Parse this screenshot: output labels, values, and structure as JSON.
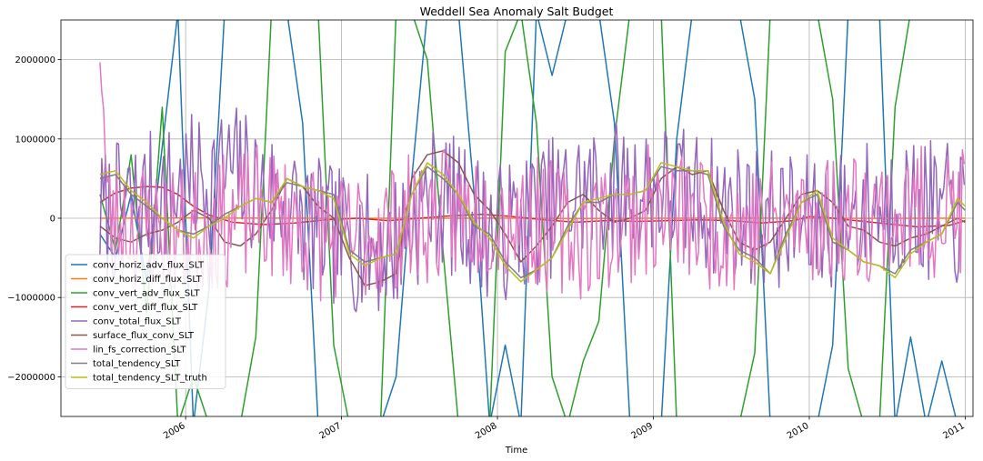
{
  "chart_data": {
    "type": "line",
    "title": "Weddell Sea Anomaly Salt Budget",
    "xlabel": "Time",
    "ylabel": "",
    "xlim": [
      2005.2,
      2011.05
    ],
    "ylim": [
      -2500000,
      2500000
    ],
    "x_ticks": [
      {
        "value": 2006,
        "label": "2006"
      },
      {
        "value": 2007,
        "label": "2007"
      },
      {
        "value": 2008,
        "label": "2008"
      },
      {
        "value": 2009,
        "label": "2009"
      },
      {
        "value": 2010,
        "label": "2010"
      },
      {
        "value": 2011,
        "label": "2011"
      }
    ],
    "y_ticks": [
      {
        "value": -2000000,
        "label": "−2000000"
      },
      {
        "value": -1000000,
        "label": "−1000000"
      },
      {
        "value": 0,
        "label": "0"
      },
      {
        "value": 1000000,
        "label": "1000000"
      },
      {
        "value": 2000000,
        "label": "2000000"
      }
    ],
    "grid": true,
    "legend_position": "lower-left",
    "series": [
      {
        "name": "conv_horiz_adv_flux_SLT",
        "color": "#1f77b4",
        "x": [
          2005.45,
          2005.55,
          2005.65,
          2005.75,
          2005.85,
          2005.95,
          2006.05,
          2006.15,
          2006.25,
          2006.35,
          2006.45,
          2006.55,
          2006.65,
          2006.75,
          2006.85,
          2006.95,
          2007.05,
          2007.15,
          2007.25,
          2007.35,
          2007.45,
          2007.55,
          2007.65,
          2007.75,
          2007.85,
          2007.95,
          2008.05,
          2008.15,
          2008.25,
          2008.35,
          2008.45,
          2008.55,
          2008.65,
          2008.75,
          2008.85,
          2008.95,
          2009.05,
          2009.15,
          2009.25,
          2009.35,
          2009.45,
          2009.55,
          2009.65,
          2009.75,
          2009.85,
          2009.95,
          2010.05,
          2010.15,
          2010.25,
          2010.35,
          2010.45,
          2010.55,
          2010.65,
          2010.75,
          2010.85,
          2010.95
        ],
        "y": [
          -200000,
          -500000,
          300000,
          -800000,
          900000,
          2600000,
          -2600000,
          -900000,
          2600000,
          2600000,
          2600000,
          2600000,
          2600000,
          1200000,
          -2600000,
          -2600000,
          -2600000,
          -2600000,
          -2600000,
          -2000000,
          500000,
          2600000,
          2600000,
          2600000,
          300000,
          -2600000,
          -1600000,
          -2600000,
          2600000,
          1800000,
          2600000,
          2600000,
          2600000,
          1200000,
          -2600000,
          -2600000,
          -2600000,
          1000000,
          2600000,
          2600000,
          2600000,
          2600000,
          1500000,
          -2600000,
          -2600000,
          -2600000,
          -2600000,
          -1600000,
          2600000,
          2600000,
          2600000,
          -2600000,
          -1500000,
          -2600000,
          -1800000,
          -2600000
        ]
      },
      {
        "name": "conv_horiz_diff_flux_SLT",
        "color": "#ff7f0e",
        "x": [
          2005.45,
          2006.0,
          2006.5,
          2007.0,
          2007.5,
          2008.0,
          2008.5,
          2009.0,
          2009.5,
          2010.0,
          2010.5,
          2011.0
        ],
        "y": [
          0,
          2000,
          1000,
          -1000,
          0,
          1000,
          -2000,
          0,
          1000,
          0,
          -1000,
          0
        ]
      },
      {
        "name": "conv_vert_adv_flux_SLT",
        "color": "#2ca02c",
        "x": [
          2005.45,
          2005.55,
          2005.65,
          2005.75,
          2005.85,
          2005.95,
          2006.05,
          2006.15,
          2006.25,
          2006.35,
          2006.45,
          2006.55,
          2006.65,
          2006.75,
          2006.85,
          2006.95,
          2007.05,
          2007.15,
          2007.25,
          2007.35,
          2007.45,
          2007.55,
          2007.65,
          2007.75,
          2007.85,
          2007.95,
          2008.05,
          2008.15,
          2008.25,
          2008.35,
          2008.45,
          2008.55,
          2008.65,
          2008.75,
          2008.85,
          2008.95,
          2009.05,
          2009.15,
          2009.25,
          2009.35,
          2009.45,
          2009.55,
          2009.65,
          2009.75,
          2009.85,
          2009.95,
          2010.05,
          2010.15,
          2010.25,
          2010.35,
          2010.45,
          2010.55,
          2010.65,
          2010.75,
          2010.85,
          2010.95
        ],
        "y": [
          300000,
          -400000,
          800000,
          -1200000,
          1400000,
          -2600000,
          -2000000,
          -2600000,
          -2600000,
          -2600000,
          -1500000,
          2600000,
          2600000,
          2600000,
          2600000,
          -1600000,
          -2600000,
          -2600000,
          -2600000,
          2600000,
          2600000,
          2000000,
          -400000,
          -2600000,
          -2600000,
          -2600000,
          2100000,
          2600000,
          1200000,
          -2000000,
          -2600000,
          -1800000,
          -1300000,
          1000000,
          2600000,
          2600000,
          2600000,
          -2600000,
          -2600000,
          -2600000,
          -2600000,
          -2600000,
          -1700000,
          2600000,
          2600000,
          2600000,
          2600000,
          1500000,
          -1900000,
          -2600000,
          -2600000,
          1400000,
          2600000,
          2600000,
          2600000,
          2600000
        ]
      },
      {
        "name": "conv_vert_diff_flux_SLT",
        "color": "#d62728",
        "x": [
          2005.45,
          2005.55,
          2005.65,
          2005.75,
          2005.85,
          2005.95,
          2006.05,
          2006.15,
          2006.3,
          2006.5,
          2006.7,
          2006.9,
          2007.1,
          2007.3,
          2007.5,
          2007.7,
          2007.9,
          2008.1,
          2008.3,
          2008.5,
          2008.7,
          2008.9,
          2009.1,
          2009.3,
          2009.5,
          2009.7,
          2009.9,
          2010.0,
          2010.1,
          2010.3,
          2010.5,
          2010.7,
          2010.9,
          2011.0
        ],
        "y": [
          200000,
          320000,
          380000,
          400000,
          390000,
          300000,
          150000,
          40000,
          -50000,
          -80000,
          -60000,
          -20000,
          0,
          -30000,
          0,
          30000,
          50000,
          20000,
          -20000,
          -50000,
          -30000,
          -40000,
          -30000,
          -20000,
          -30000,
          -60000,
          -30000,
          20000,
          10000,
          -30000,
          -70000,
          -110000,
          -90000,
          -30000
        ]
      },
      {
        "name": "conv_total_flux_SLT",
        "color": "#9467bd",
        "noise": {
          "amplitude": 900000,
          "step": 0.012,
          "seed": 7,
          "bias": [
            [
              2005.45,
              0
            ],
            [
              2006.3,
              600000
            ],
            [
              2006.9,
              -200000
            ],
            [
              2007.3,
              -400000
            ],
            [
              2007.6,
              300000
            ],
            [
              2008.0,
              -200000
            ],
            [
              2008.5,
              300000
            ],
            [
              2009.0,
              400000
            ],
            [
              2009.5,
              100000
            ],
            [
              2010.0,
              -100000
            ],
            [
              2010.5,
              200000
            ],
            [
              2011.0,
              0
            ]
          ]
        }
      },
      {
        "name": "surface_flux_conv_SLT",
        "color": "#8c564b",
        "x": [
          2005.45,
          2005.55,
          2005.65,
          2005.75,
          2005.85,
          2005.95,
          2006.05,
          2006.15,
          2006.25,
          2006.35,
          2006.45,
          2006.55,
          2006.65,
          2006.75,
          2006.85,
          2006.95,
          2007.05,
          2007.15,
          2007.25,
          2007.35,
          2007.45,
          2007.55,
          2007.65,
          2007.75,
          2007.85,
          2007.95,
          2008.05,
          2008.15,
          2008.25,
          2008.35,
          2008.45,
          2008.55,
          2008.65,
          2008.75,
          2008.85,
          2008.95,
          2009.05,
          2009.15,
          2009.25,
          2009.35,
          2009.45,
          2009.55,
          2009.65,
          2009.75,
          2009.85,
          2009.95,
          2010.05,
          2010.15,
          2010.25,
          2010.35,
          2010.45,
          2010.55,
          2010.65,
          2010.75,
          2010.85,
          2010.95,
          2011.0
        ],
        "y": [
          -100000,
          -250000,
          -300000,
          -200000,
          -150000,
          -50000,
          100000,
          0,
          -300000,
          -350000,
          -200000,
          100000,
          500000,
          400000,
          150000,
          0,
          -500000,
          -850000,
          -800000,
          -700000,
          500000,
          800000,
          850000,
          700000,
          300000,
          100000,
          -200000,
          -550000,
          -350000,
          -100000,
          200000,
          300000,
          100000,
          -50000,
          0,
          100000,
          500000,
          650000,
          550000,
          600000,
          100000,
          -300000,
          -400000,
          -300000,
          0,
          300000,
          350000,
          200000,
          -100000,
          -150000,
          -300000,
          -350000,
          -250000,
          -200000,
          -100000,
          0,
          -50000
        ]
      },
      {
        "name": "lin_fs_correction_SLT",
        "color": "#e377c2",
        "noise": {
          "amplitude": 850000,
          "step": 0.012,
          "seed": 23,
          "bias": [
            [
              2005.45,
              2400000
            ],
            [
              2005.5,
              0
            ],
            [
              2006.0,
              -200000
            ],
            [
              2006.5,
              100000
            ],
            [
              2007.0,
              -300000
            ],
            [
              2007.5,
              0
            ],
            [
              2008.0,
              100000
            ],
            [
              2008.5,
              -200000
            ],
            [
              2009.0,
              100000
            ],
            [
              2009.5,
              -100000
            ],
            [
              2010.0,
              0
            ],
            [
              2011.0,
              100000
            ]
          ]
        }
      },
      {
        "name": "total_tendency_SLT",
        "color": "#7f7f7f",
        "x": [
          2005.45,
          2005.55,
          2005.65,
          2005.75,
          2005.85,
          2005.95,
          2006.05,
          2006.15,
          2006.25,
          2006.35,
          2006.45,
          2006.55,
          2006.65,
          2006.75,
          2006.85,
          2006.95,
          2007.05,
          2007.15,
          2007.25,
          2007.35,
          2007.45,
          2007.55,
          2007.65,
          2007.75,
          2007.85,
          2007.95,
          2008.05,
          2008.15,
          2008.25,
          2008.35,
          2008.45,
          2008.55,
          2008.65,
          2008.75,
          2008.85,
          2008.95,
          2009.05,
          2009.15,
          2009.25,
          2009.35,
          2009.45,
          2009.55,
          2009.65,
          2009.75,
          2009.85,
          2009.95,
          2010.05,
          2010.15,
          2010.25,
          2010.35,
          2010.45,
          2010.55,
          2010.65,
          2010.75,
          2010.85,
          2010.95,
          2011.0
        ],
        "y": [
          500000,
          550000,
          300000,
          150000,
          0,
          -150000,
          -200000,
          -100000,
          50000,
          150000,
          250000,
          200000,
          450000,
          400000,
          350000,
          300000,
          -400000,
          -550000,
          -500000,
          -450000,
          300000,
          650000,
          500000,
          300000,
          -100000,
          -200000,
          -550000,
          -750000,
          -650000,
          -500000,
          -100000,
          200000,
          200000,
          300000,
          300000,
          350000,
          650000,
          600000,
          600000,
          550000,
          -100000,
          -400000,
          -500000,
          -700000,
          -200000,
          200000,
          300000,
          -300000,
          -400000,
          -550000,
          -600000,
          -700000,
          -400000,
          -300000,
          -200000,
          200000,
          100000
        ]
      },
      {
        "name": "total_tendency_SLT_truth",
        "color": "#bcbd22",
        "x": [
          2005.45,
          2005.55,
          2005.65,
          2005.75,
          2005.85,
          2005.95,
          2006.05,
          2006.15,
          2006.25,
          2006.35,
          2006.45,
          2006.55,
          2006.65,
          2006.75,
          2006.85,
          2006.95,
          2007.05,
          2007.15,
          2007.25,
          2007.35,
          2007.45,
          2007.55,
          2007.65,
          2007.75,
          2007.85,
          2007.95,
          2008.05,
          2008.15,
          2008.25,
          2008.35,
          2008.45,
          2008.55,
          2008.65,
          2008.75,
          2008.85,
          2008.95,
          2009.05,
          2009.15,
          2009.25,
          2009.35,
          2009.45,
          2009.55,
          2009.65,
          2009.75,
          2009.85,
          2009.95,
          2010.05,
          2010.15,
          2010.25,
          2010.35,
          2010.45,
          2010.55,
          2010.65,
          2010.75,
          2010.85,
          2010.95,
          2011.0
        ],
        "y": [
          550000,
          600000,
          350000,
          200000,
          0,
          -150000,
          -250000,
          -100000,
          0,
          150000,
          250000,
          200000,
          500000,
          400000,
          350000,
          250000,
          -450000,
          -600000,
          -500000,
          -450000,
          300000,
          700000,
          550000,
          300000,
          -50000,
          -250000,
          -600000,
          -800000,
          -650000,
          -500000,
          -150000,
          200000,
          250000,
          300000,
          300000,
          350000,
          700000,
          650000,
          600000,
          600000,
          -50000,
          -450000,
          -550000,
          -700000,
          -250000,
          200000,
          350000,
          -250000,
          -400000,
          -550000,
          -600000,
          -750000,
          -450000,
          -300000,
          -200000,
          250000,
          150000
        ]
      }
    ]
  }
}
